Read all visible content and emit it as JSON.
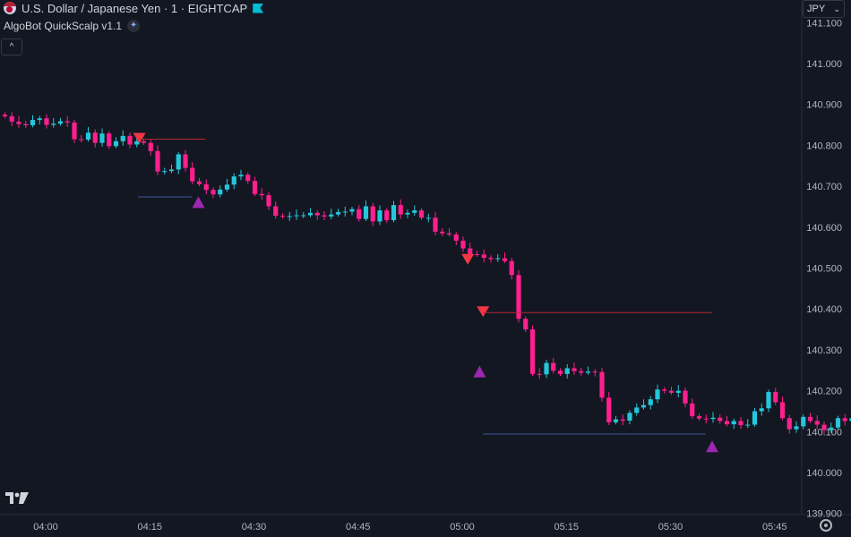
{
  "header": {
    "symbol_title": "U.S. Dollar / Japanese Yen · 1 · EIGHTCAP",
    "symbol_icon": "usd-jpy-flag-icon",
    "flag_icon": "bookmark-flag-icon"
  },
  "indicator": {
    "name": "AlgoBot QuickScalp v1.1",
    "icon": "indicator-settings-icon"
  },
  "currency_selector": {
    "value": "JPY"
  },
  "collapse_button": {
    "label": "^"
  },
  "colors": {
    "background": "#131722",
    "up": "#26c6da",
    "down": "#ff1f8e",
    "sell_signal": "#f23645",
    "buy_signal": "#9c27b0",
    "support_line": "#3b5998",
    "resistance_line": "#b22833"
  },
  "chart_data": {
    "type": "candlestick",
    "y_ticks": [
      "141.100",
      "141.000",
      "140.900",
      "140.800",
      "140.700",
      "140.600",
      "140.500",
      "140.400",
      "140.300",
      "140.200",
      "140.100",
      "140.000",
      "139.900"
    ],
    "x_ticks": [
      "04:00",
      "04:15",
      "04:30",
      "04:45",
      "05:00",
      "05:15",
      "05:30",
      "05:45"
    ],
    "x_range_minutes": [
      -6,
      51
    ],
    "ylim": [
      139.9,
      141.13
    ],
    "candles_close": [
      140.871,
      140.858,
      140.852,
      140.849,
      140.862,
      140.866,
      140.85,
      140.853,
      140.859,
      140.856,
      140.815,
      140.814,
      140.831,
      140.806,
      140.829,
      140.798,
      140.81,
      140.823,
      140.802,
      140.81,
      140.806,
      140.786,
      140.736,
      140.737,
      140.741,
      140.778,
      140.745,
      140.712,
      140.705,
      140.691,
      140.68,
      140.692,
      140.704,
      140.724,
      140.728,
      140.713,
      140.681,
      140.678,
      140.651,
      140.628,
      140.626,
      140.627,
      140.629,
      140.629,
      140.635,
      140.629,
      140.626,
      140.631,
      140.637,
      140.638,
      140.644,
      140.62,
      140.651,
      140.614,
      140.641,
      140.617,
      140.654,
      140.631,
      140.635,
      140.641,
      140.623,
      140.623,
      140.589,
      140.585,
      140.582,
      140.567,
      140.548,
      140.534,
      140.533,
      140.525,
      140.522,
      140.524,
      140.517,
      140.483,
      140.376,
      140.35,
      140.241,
      140.24,
      140.268,
      140.249,
      140.241,
      140.255,
      140.248,
      140.244,
      140.247,
      140.246,
      140.183,
      140.123,
      140.13,
      140.127,
      140.146,
      140.159,
      140.165,
      140.179,
      140.203,
      140.2,
      140.195,
      140.2,
      140.169,
      140.138,
      140.132,
      140.131,
      140.134,
      140.126,
      140.118,
      140.126,
      140.116,
      140.117,
      140.15,
      140.157,
      140.197,
      140.172,
      140.133,
      140.106,
      140.113,
      140.136,
      140.126,
      140.117,
      140.104,
      140.11,
      140.133,
      140.126,
      140.133,
      140.14,
      140.137,
      140.13,
      140.141
    ],
    "signals": [
      {
        "type": "sell",
        "minute": 13.5,
        "price": 140.813,
        "line_to_minute": 23
      },
      {
        "type": "buy",
        "minute": 22,
        "price": 140.66,
        "line_price": 140.674,
        "line_from_minute": 13.3
      },
      {
        "type": "sell",
        "minute": 0.8,
        "price": 140.517
      },
      {
        "type": "sell",
        "minute": 3,
        "price": 140.389,
        "line_to_minute": 36
      },
      {
        "type": "buy",
        "minute": 2.5,
        "price": 140.246
      },
      {
        "type": "buy",
        "minute": 36,
        "price": 140.063,
        "line_price": 140.094,
        "line_from_minute": 3
      }
    ]
  }
}
